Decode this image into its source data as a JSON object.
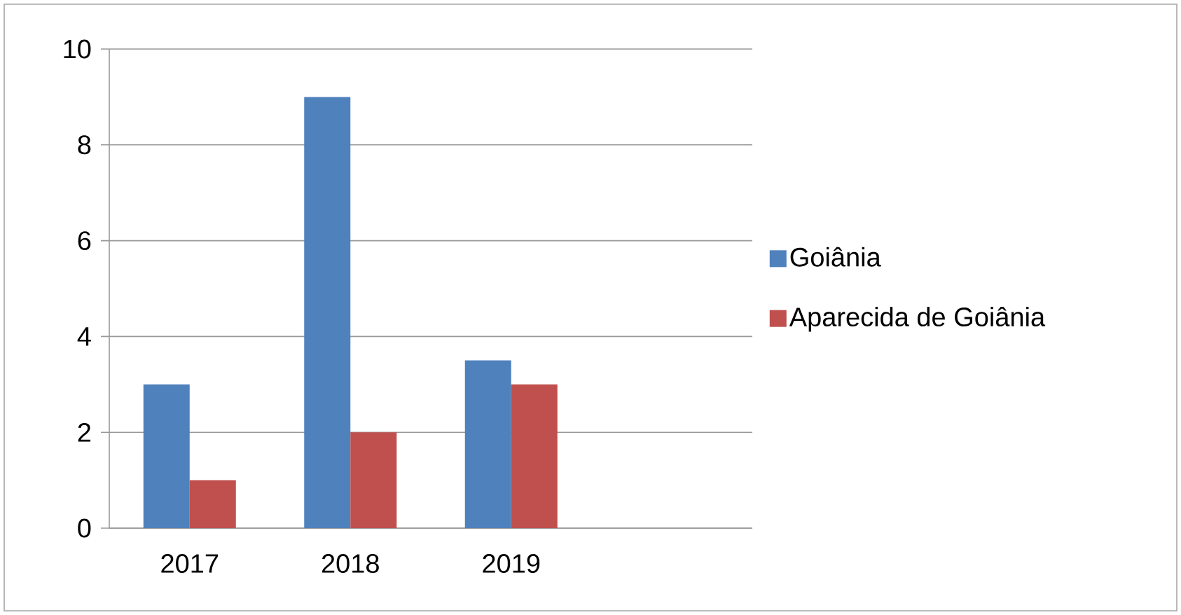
{
  "chart_data": {
    "type": "bar",
    "categories": [
      "2017",
      "2018",
      "2019",
      null
    ],
    "series": [
      {
        "name": "Goiânia",
        "color": "#4f81bd",
        "values": [
          3,
          9,
          3.5,
          null
        ]
      },
      {
        "name": "Aparecida de Goiânia",
        "color": "#c0504d",
        "values": [
          1,
          2,
          3,
          null
        ]
      }
    ],
    "ylim": [
      0,
      10
    ],
    "yticks": [
      0,
      2,
      4,
      6,
      8,
      10
    ],
    "grid": "y",
    "legend": "right"
  }
}
